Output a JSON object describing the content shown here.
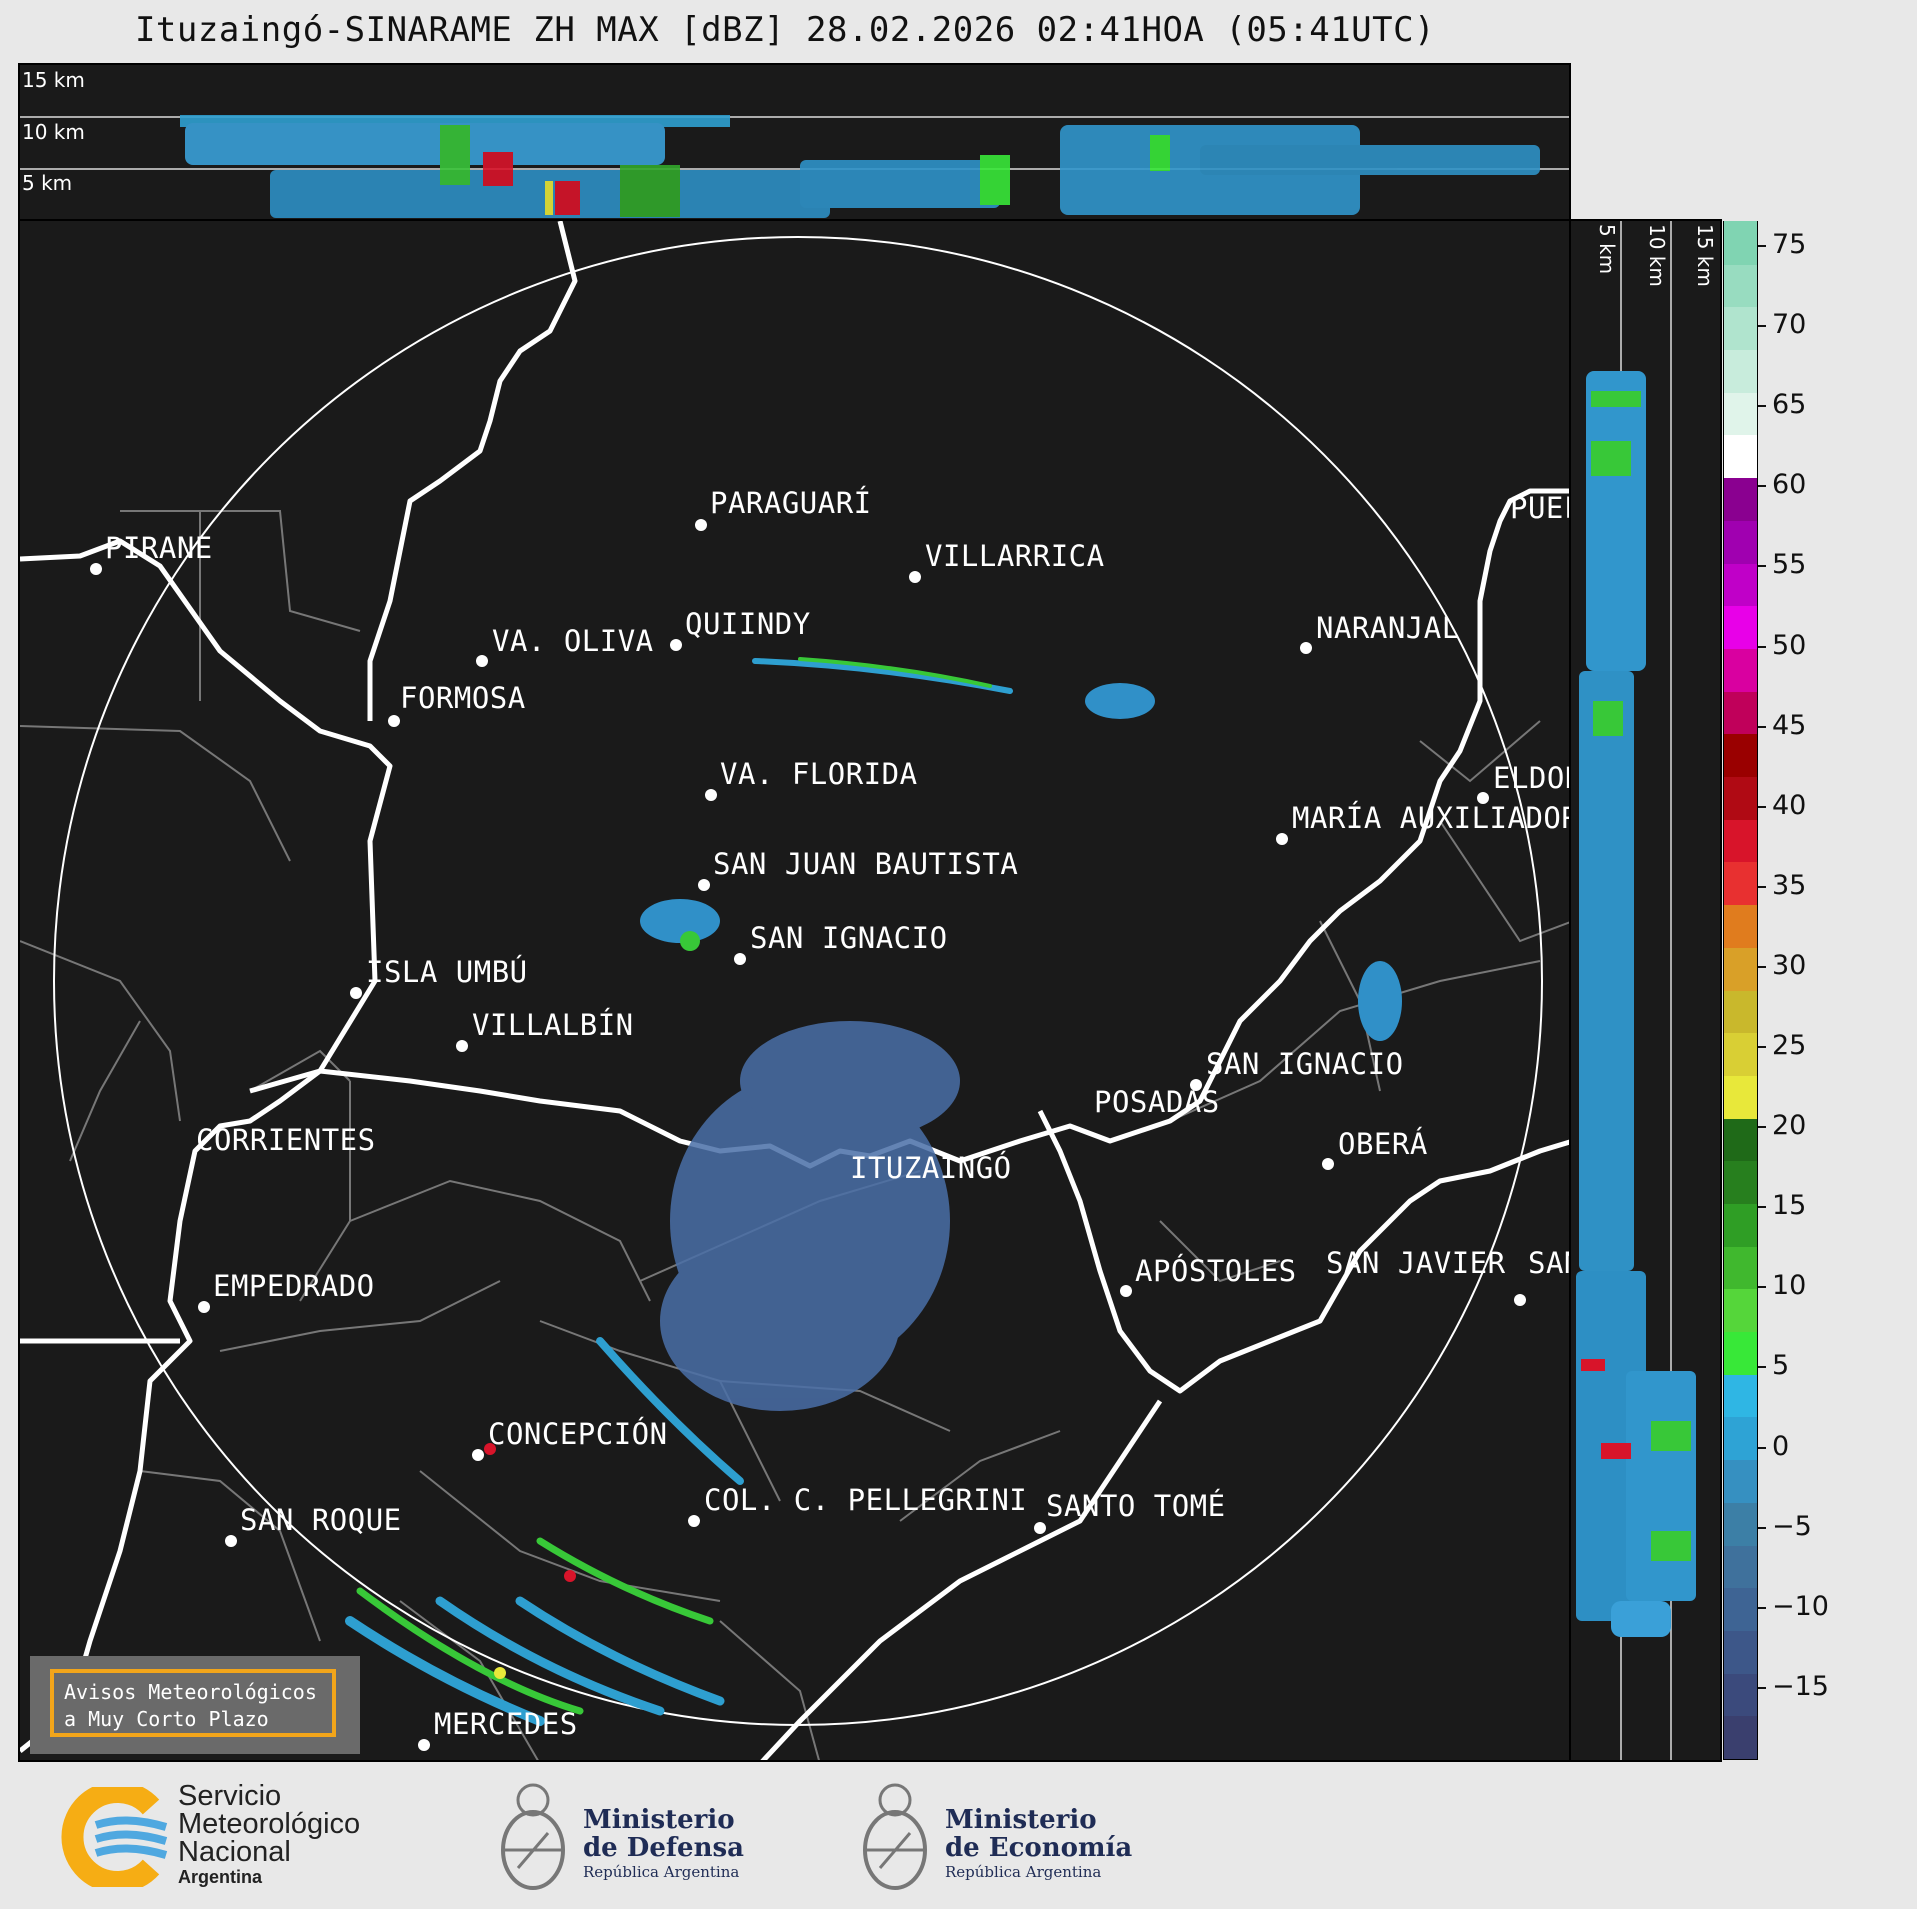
{
  "title": "Ituzaingó-SINARAME ZH MAX [dBZ] 28.02.2026 02:41HOA (05:41UTC)",
  "top_strip": {
    "height_labels": [
      "15 km",
      "10 km",
      "5 km"
    ]
  },
  "side_strip": {
    "height_labels": [
      "5 km",
      "10 km",
      "15 km"
    ]
  },
  "cities": [
    {
      "name": "PARAGUARÍ"
    },
    {
      "name": "VILLARRICA"
    },
    {
      "name": "PIRANE"
    },
    {
      "name": "QUIINDY"
    },
    {
      "name": "VA. OLIVA"
    },
    {
      "name": "NARANJAL"
    },
    {
      "name": "FORMOSA"
    },
    {
      "name": "VA. FLORIDA"
    },
    {
      "name": "ELDOR"
    },
    {
      "name": "MARÍA AUXILIADOR"
    },
    {
      "name": "SAN JUAN BAUTISTA"
    },
    {
      "name": "SAN IGNACIO"
    },
    {
      "name": "ISLA UMBÚ"
    },
    {
      "name": "VILLALBÍN"
    },
    {
      "name": "SAN IGNACIO"
    },
    {
      "name": "POSADAS"
    },
    {
      "name": "CORRIENTES"
    },
    {
      "name": "ITUZAINGÓ"
    },
    {
      "name": "OBERÁ"
    },
    {
      "name": "APÓSTOLES"
    },
    {
      "name": "SAN JAVIER"
    },
    {
      "name": "SAN"
    },
    {
      "name": "EMPEDRADO"
    },
    {
      "name": "CONCEPCIÓN"
    },
    {
      "name": "COL. C. PELLEGRINI"
    },
    {
      "name": "SANTO TOMÉ"
    },
    {
      "name": "SAN ROQUE"
    },
    {
      "name": "MERCEDES"
    },
    {
      "name": "PUEF"
    }
  ],
  "warning_box": {
    "line1": "Avisos Meteorológicos",
    "line2": "a Muy Corto Plazo"
  },
  "colorbar": {
    "label_ticks": [
      "75",
      "70",
      "65",
      "60",
      "55",
      "50",
      "45",
      "40",
      "35",
      "30",
      "25",
      "20",
      "15",
      "10",
      "5",
      "0",
      "−5",
      "−10",
      "−15"
    ],
    "colors": [
      "#3a3f6e",
      "#3b4a7c",
      "#3d5789",
      "#3e6494",
      "#3f719c",
      "#3c7fa6",
      "#3690c1",
      "#2ea3d5",
      "#2fb6e4",
      "#38e838",
      "#55d63a",
      "#40b82e",
      "#2f9e25",
      "#277f1e",
      "#1f6a18",
      "#e8e83a",
      "#d9cf34",
      "#c9b82c",
      "#d9a028",
      "#e07c1e",
      "#e83030",
      "#d8142a",
      "#b00a14",
      "#9a0000",
      "#c0005a",
      "#d900a0",
      "#e800e8",
      "#c000c8",
      "#a000b0",
      "#8a0090",
      "#ffffff",
      "#e0f4ea",
      "#c8ecdc",
      "#b0e4ce",
      "#98dcc0",
      "#80d4b2"
    ]
  },
  "footer": {
    "smn_line1": "Servicio",
    "smn_line2": "Meteorológico",
    "smn_line3": "Nacional",
    "smn_line4": "Argentina",
    "def_line1": "Ministerio",
    "def_line2": "de Defensa",
    "def_line3": "República Argentina",
    "eco_line1": "Ministerio",
    "eco_line2": "de Economía",
    "eco_line3": "República Argentina"
  }
}
